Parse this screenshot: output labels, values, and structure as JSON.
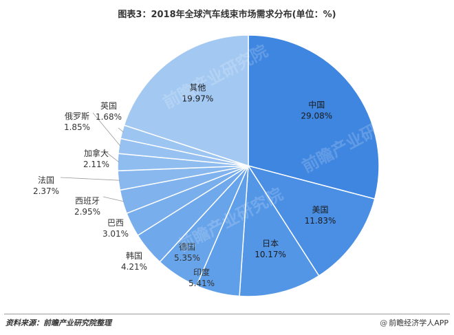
{
  "title": "图表3：2018年全球汽车线束市场需求分布(单位：%)",
  "source": "资料来源：前瞻产业研究院整理",
  "brand": {
    "icon": "at-sign-icon",
    "text": "@前瞻经济学人APP"
  },
  "watermark": "前瞻产业研究院",
  "chart_data": {
    "type": "pie",
    "unit": "%",
    "slices": [
      {
        "label": "中国",
        "value": 29.08,
        "display": "29.08%"
      },
      {
        "label": "美国",
        "value": 11.83,
        "display": "11.83%"
      },
      {
        "label": "日本",
        "value": 10.17,
        "display": "10.17%"
      },
      {
        "label": "印度",
        "value": 5.41,
        "display": "5.41%"
      },
      {
        "label": "德国",
        "value": 5.35,
        "display": "5.35%"
      },
      {
        "label": "韩国",
        "value": 4.21,
        "display": "4.21%"
      },
      {
        "label": "巴西",
        "value": 3.01,
        "display": "3.01%"
      },
      {
        "label": "西班牙",
        "value": 2.95,
        "display": "2.95%"
      },
      {
        "label": "法国",
        "value": 2.37,
        "display": "2.37%"
      },
      {
        "label": "加拿大",
        "value": 2.11,
        "display": "2.11%"
      },
      {
        "label": "俄罗斯",
        "value": 1.85,
        "display": "1.85%"
      },
      {
        "label": "英国",
        "value": 1.68,
        "display": "1.68%"
      },
      {
        "label": "其他",
        "value": 19.97,
        "display": "19.97%"
      }
    ],
    "colors": [
      "#3f86e0",
      "#4a8fe4",
      "#5496e6",
      "#5f9ee8",
      "#68a4ea",
      "#70a9eb",
      "#78aeec",
      "#80b3ed",
      "#88b8ee",
      "#8fbdef",
      "#96c1f0",
      "#9dc5f1",
      "#a3c9f2"
    ],
    "start": "12 o'clock",
    "direction": "clockwise"
  }
}
